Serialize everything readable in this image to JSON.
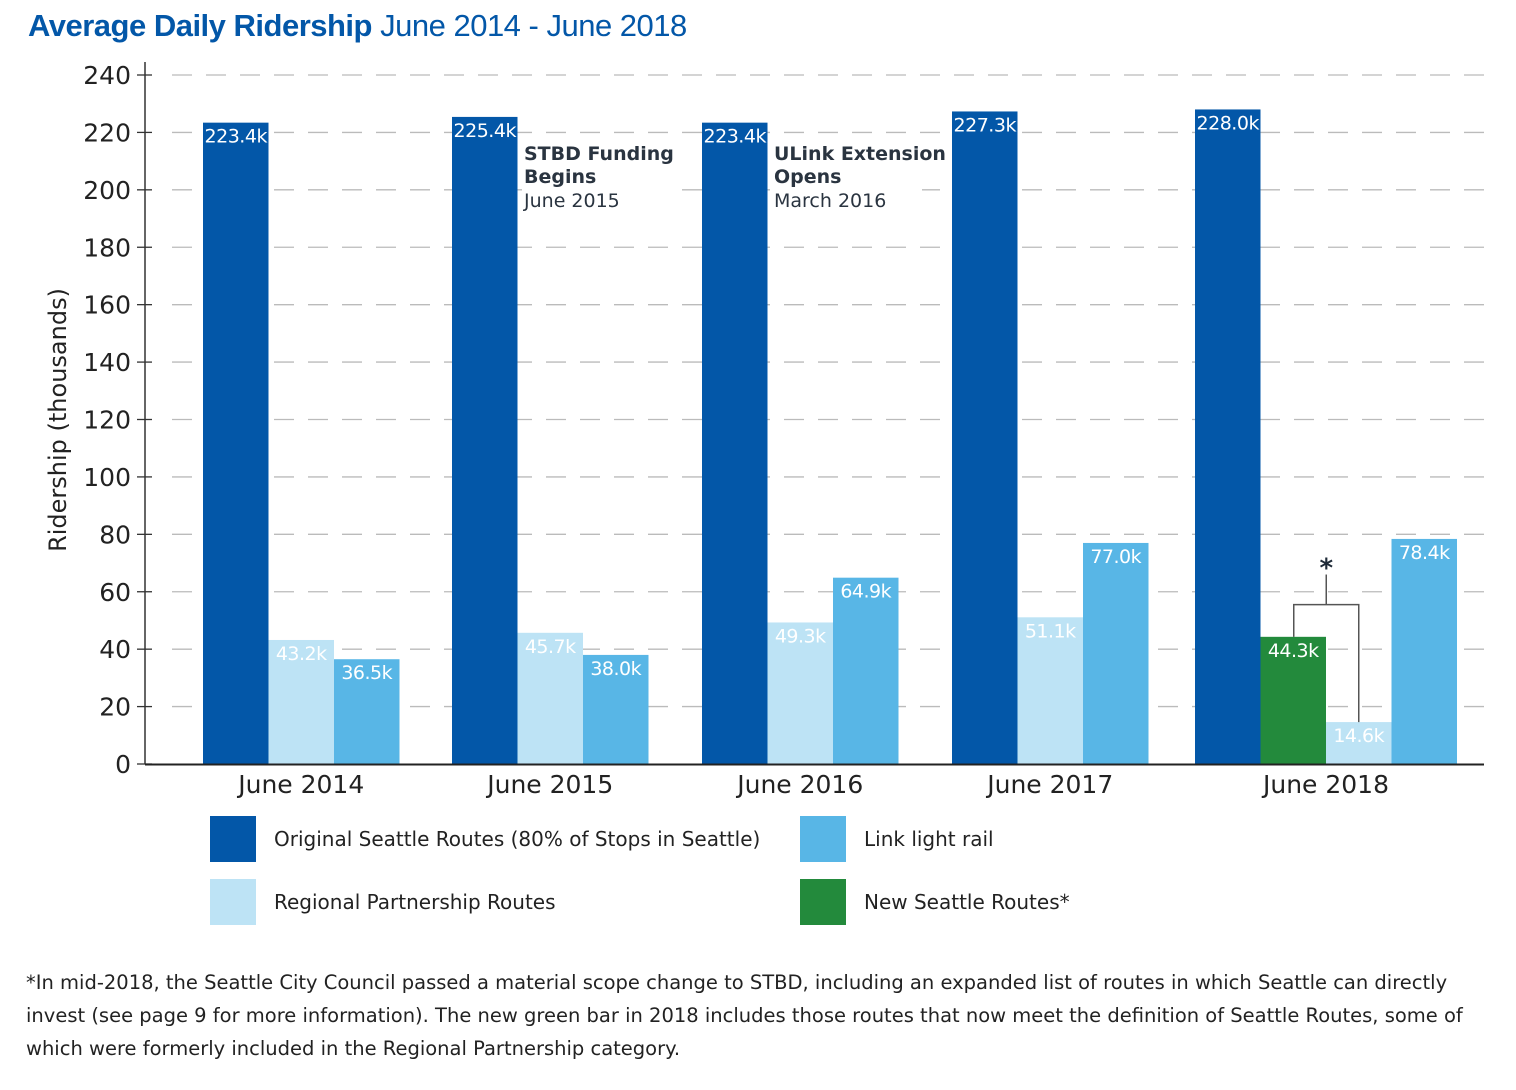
{
  "chart_data": {
    "type": "bar",
    "title": "Average Daily Ridership",
    "subtitle": "June 2014 - June 2018",
    "ylabel": "Ridership (thousands)",
    "xlabel": "",
    "ylim": [
      0,
      240
    ],
    "yticks": [
      0,
      20,
      40,
      60,
      80,
      100,
      120,
      140,
      160,
      180,
      200,
      220,
      240
    ],
    "grid": true,
    "legend_position": "bottom",
    "categories": [
      "June 2014",
      "June 2015",
      "June 2016",
      "June 2017",
      "June 2018"
    ],
    "series": [
      {
        "name": "Original Seattle Routes (80% of Stops in Seattle)",
        "color": "#0357a8",
        "values": [
          223.4,
          225.4,
          223.4,
          227.3,
          228.0
        ],
        "labels": [
          "223.4k",
          "225.4k",
          "223.4k",
          "227.3k",
          "228.0k"
        ]
      },
      {
        "name": "New Seattle Routes*",
        "color": "#238a3c",
        "values": [
          null,
          null,
          null,
          null,
          44.3
        ],
        "labels": [
          "",
          "",
          "",
          "",
          "44.3k"
        ]
      },
      {
        "name": "Regional Partnership Routes",
        "color": "#bde3f5",
        "values": [
          43.2,
          45.7,
          49.3,
          51.1,
          14.6
        ],
        "labels": [
          "43.2k",
          "45.7k",
          "49.3k",
          "51.1k",
          "14.6k"
        ]
      },
      {
        "name": "Link light rail",
        "color": "#58b6e6",
        "values": [
          36.5,
          38.0,
          64.9,
          77.0,
          78.4
        ],
        "labels": [
          "36.5k",
          "38.0k",
          "64.9k",
          "77.0k",
          "78.4k"
        ]
      }
    ],
    "annotations": [
      {
        "category": "June 2015",
        "title_line1": "STBD Funding",
        "title_line2": "Begins",
        "date": "June 2015"
      },
      {
        "category": "June 2016",
        "title_line1": "ULink Extension",
        "title_line2": "Opens",
        "date": "March 2016"
      },
      {
        "category": "June 2018",
        "bracket_symbol": "*"
      }
    ],
    "legend": [
      {
        "label": "Original Seattle Routes (80% of Stops in Seattle)",
        "color": "#0357a8"
      },
      {
        "label": "Link light rail",
        "color": "#58b6e6"
      },
      {
        "label": "Regional Partnership Routes",
        "color": "#bde3f5"
      },
      {
        "label": "New Seattle Routes*",
        "color": "#238a3c"
      }
    ],
    "footnote": "*In mid-2018, the Seattle City Council passed a material scope change to STBD, including an expanded list of routes in which Seattle can directly invest (see page 9 for more information). The new green bar in 2018 includes those routes that now meet the definition of Seattle Routes, some of which were formerly included in the Regional Partnership category."
  }
}
